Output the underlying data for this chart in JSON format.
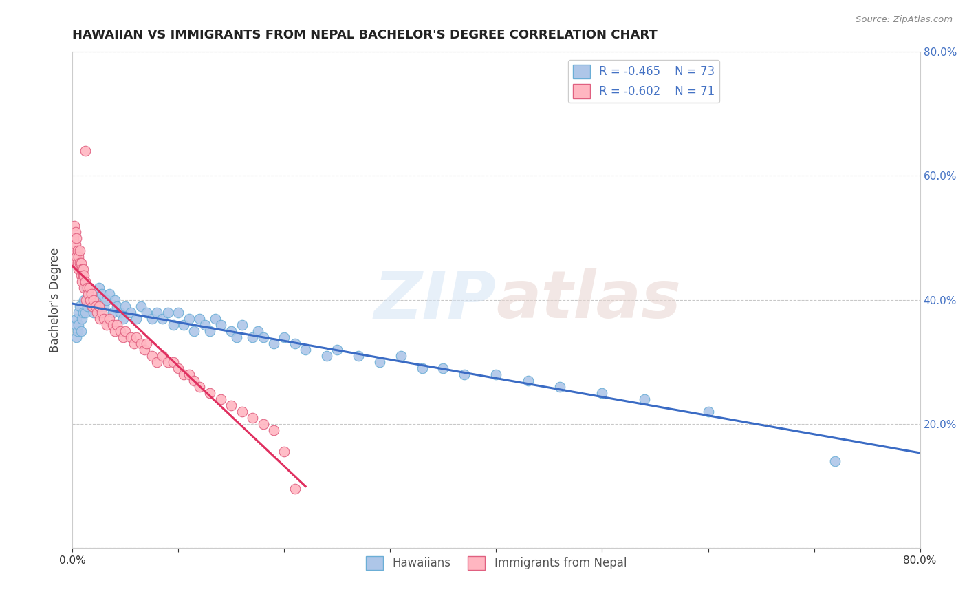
{
  "title": "HAWAIIAN VS IMMIGRANTS FROM NEPAL BACHELOR'S DEGREE CORRELATION CHART",
  "source": "Source: ZipAtlas.com",
  "ylabel": "Bachelor's Degree",
  "watermark_zip": "ZIP",
  "watermark_atlas": "atlas",
  "xlim": [
    0.0,
    0.8
  ],
  "ylim": [
    0.0,
    0.8
  ],
  "grid_color": "#c8c8c8",
  "background_color": "#ffffff",
  "hawaiians_color": "#aec6e8",
  "hawaiians_edge": "#6baed6",
  "nepal_color": "#ffb6c1",
  "nepal_edge": "#e06080",
  "hawaiians_line_color": "#3a6bc4",
  "nepal_line_color": "#e03060",
  "R_hawaiians": -0.465,
  "N_hawaiians": 73,
  "R_nepal": -0.602,
  "N_nepal": 71,
  "legend_label_1": "Hawaiians",
  "legend_label_2": "Immigrants from Nepal",
  "hawaiians_x": [
    0.003,
    0.004,
    0.004,
    0.005,
    0.006,
    0.006,
    0.007,
    0.008,
    0.009,
    0.01,
    0.011,
    0.012,
    0.013,
    0.014,
    0.015,
    0.016,
    0.018,
    0.02,
    0.022,
    0.025,
    0.028,
    0.03,
    0.032,
    0.035,
    0.038,
    0.04,
    0.042,
    0.045,
    0.048,
    0.05,
    0.055,
    0.06,
    0.065,
    0.07,
    0.075,
    0.08,
    0.085,
    0.09,
    0.095,
    0.1,
    0.105,
    0.11,
    0.115,
    0.12,
    0.125,
    0.13,
    0.135,
    0.14,
    0.15,
    0.155,
    0.16,
    0.17,
    0.175,
    0.18,
    0.19,
    0.2,
    0.21,
    0.22,
    0.24,
    0.25,
    0.27,
    0.29,
    0.31,
    0.33,
    0.35,
    0.37,
    0.4,
    0.43,
    0.46,
    0.5,
    0.54,
    0.6,
    0.72
  ],
  "hawaiians_y": [
    0.36,
    0.34,
    0.37,
    0.35,
    0.38,
    0.36,
    0.39,
    0.35,
    0.37,
    0.38,
    0.4,
    0.38,
    0.42,
    0.39,
    0.41,
    0.4,
    0.39,
    0.38,
    0.4,
    0.42,
    0.41,
    0.39,
    0.4,
    0.41,
    0.38,
    0.4,
    0.39,
    0.38,
    0.37,
    0.39,
    0.38,
    0.37,
    0.39,
    0.38,
    0.37,
    0.38,
    0.37,
    0.38,
    0.36,
    0.38,
    0.36,
    0.37,
    0.35,
    0.37,
    0.36,
    0.35,
    0.37,
    0.36,
    0.35,
    0.34,
    0.36,
    0.34,
    0.35,
    0.34,
    0.33,
    0.34,
    0.33,
    0.32,
    0.31,
    0.32,
    0.31,
    0.3,
    0.31,
    0.29,
    0.29,
    0.28,
    0.28,
    0.27,
    0.26,
    0.25,
    0.24,
    0.22,
    0.14
  ],
  "nepal_x": [
    0.001,
    0.001,
    0.002,
    0.002,
    0.003,
    0.003,
    0.004,
    0.004,
    0.005,
    0.005,
    0.006,
    0.006,
    0.007,
    0.007,
    0.008,
    0.008,
    0.009,
    0.009,
    0.01,
    0.01,
    0.011,
    0.011,
    0.012,
    0.012,
    0.013,
    0.014,
    0.015,
    0.016,
    0.017,
    0.018,
    0.019,
    0.02,
    0.022,
    0.023,
    0.025,
    0.026,
    0.028,
    0.03,
    0.032,
    0.035,
    0.038,
    0.04,
    0.042,
    0.045,
    0.048,
    0.05,
    0.055,
    0.058,
    0.06,
    0.065,
    0.068,
    0.07,
    0.075,
    0.08,
    0.085,
    0.09,
    0.095,
    0.1,
    0.105,
    0.11,
    0.115,
    0.12,
    0.13,
    0.14,
    0.15,
    0.16,
    0.17,
    0.18,
    0.19,
    0.2,
    0.21
  ],
  "nepal_y": [
    0.5,
    0.46,
    0.52,
    0.48,
    0.51,
    0.49,
    0.47,
    0.5,
    0.46,
    0.48,
    0.47,
    0.45,
    0.46,
    0.48,
    0.44,
    0.46,
    0.45,
    0.43,
    0.45,
    0.44,
    0.42,
    0.44,
    0.43,
    0.64,
    0.4,
    0.42,
    0.41,
    0.42,
    0.4,
    0.41,
    0.39,
    0.4,
    0.39,
    0.38,
    0.39,
    0.37,
    0.38,
    0.37,
    0.36,
    0.37,
    0.36,
    0.35,
    0.36,
    0.35,
    0.34,
    0.35,
    0.34,
    0.33,
    0.34,
    0.33,
    0.32,
    0.33,
    0.31,
    0.3,
    0.31,
    0.3,
    0.3,
    0.29,
    0.28,
    0.28,
    0.27,
    0.26,
    0.25,
    0.24,
    0.23,
    0.22,
    0.21,
    0.2,
    0.19,
    0.155,
    0.095
  ]
}
